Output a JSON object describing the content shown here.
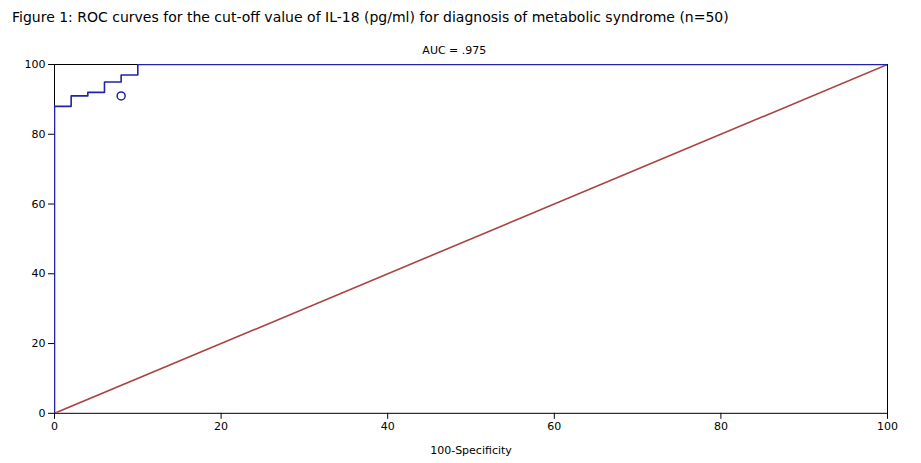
{
  "chart_data": {
    "type": "line",
    "title": "Figure 1: ROC curves for the cut-off value of IL-18 (pg/ml) for diagnosis of metabolic syndrome (n=50)",
    "xlabel": "100-Specificity",
    "xlim": [
      0,
      100
    ],
    "ylim": [
      0,
      100
    ],
    "xticks": [
      0,
      20,
      40,
      60,
      80,
      100
    ],
    "yticks": [
      0,
      20,
      40,
      60,
      80,
      100
    ],
    "series": [
      {
        "color": "#aa4444",
        "x": [
          0,
          100
        ],
        "values": [
          0,
          100
        ]
      },
      {
        "color": "#2222aa",
        "x": [
          0,
          0,
          0,
          0,
          0,
          0,
          0,
          2,
          2,
          4,
          4,
          6,
          6,
          8,
          8,
          10,
          10,
          12,
          12,
          14,
          14,
          16,
          16,
          100
        ],
        "values": [
          0,
          55,
          65,
          68,
          72,
          80,
          88,
          88,
          91,
          91,
          92,
          92,
          95,
          95,
          97,
          97,
          100,
          100,
          100,
          100,
          100,
          100,
          100,
          100
        ]
      },
      {
        "type": "scatter",
        "marker": "circle",
        "color": "#2222aa",
        "x": [
          8
        ],
        "values": [
          91
        ]
      }
    ],
    "annotations": [
      {
        "text": "AUC = .975",
        "x": 48,
        "y": 103
      }
    ]
  }
}
